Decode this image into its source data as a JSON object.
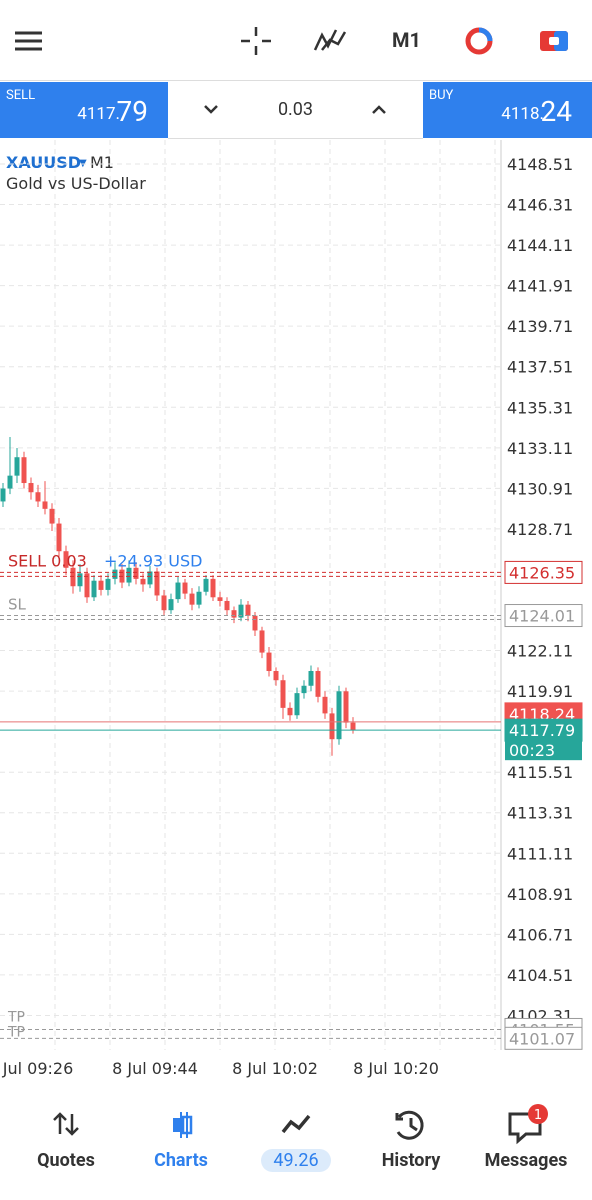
{
  "top_bar": {
    "timeframe": "M1"
  },
  "trade_panel": {
    "sell_label": "SELL",
    "sell_price_main": "4117.",
    "sell_price_big": "79",
    "volume": "0.03",
    "buy_label": "BUY",
    "buy_price_main": "4118.",
    "buy_price_big": "24"
  },
  "chart": {
    "symbol": "XAUUSD",
    "timeframe": "M1",
    "description": "Gold vs US-Dollar",
    "price_ticks": [
      4148.51,
      4146.31,
      4144.11,
      4141.91,
      4139.71,
      4137.51,
      4135.31,
      4133.11,
      4130.91,
      4128.71,
      4122.11,
      4119.91,
      4115.51,
      4113.31,
      4111.11,
      4108.91,
      4106.71,
      4104.51,
      4102.31
    ],
    "time_labels": [
      "Jul 09:26",
      "8 Jul 09:44",
      "8 Jul 10:02",
      "8 Jul 10:20"
    ],
    "candles": [
      [
        4130.2,
        4131.2,
        4129.9,
        4130.9
      ],
      [
        4130.9,
        4133.7,
        4130.6,
        4131.6
      ],
      [
        4131.6,
        4133.1,
        4131.2,
        4132.6
      ],
      [
        4132.6,
        4132.9,
        4130.9,
        4131.2
      ],
      [
        4131.2,
        4131.5,
        4130.3,
        4130.7
      ],
      [
        4130.7,
        4131.1,
        4129.9,
        4130.2
      ],
      [
        4130.2,
        4131.3,
        4129.5,
        4129.8
      ],
      [
        4129.8,
        4130.1,
        4128.6,
        4129.0
      ],
      [
        4129.0,
        4129.3,
        4127.2,
        4127.5
      ],
      [
        4127.5,
        4127.8,
        4126.2,
        4126.6
      ],
      [
        4126.6,
        4127.0,
        4125.2,
        4125.6
      ],
      [
        4125.6,
        4126.8,
        4125.3,
        4126.3
      ],
      [
        4126.3,
        4126.6,
        4124.7,
        4125.0
      ],
      [
        4125.0,
        4126.2,
        4124.8,
        4125.9
      ],
      [
        4125.9,
        4126.2,
        4125.1,
        4125.4
      ],
      [
        4125.4,
        4126.3,
        4125.1,
        4126.0
      ],
      [
        4126.0,
        4126.9,
        4125.7,
        4126.5
      ],
      [
        4126.5,
        4126.8,
        4125.5,
        4125.8
      ],
      [
        4125.8,
        4127.0,
        4125.6,
        4126.6
      ],
      [
        4126.6,
        4126.9,
        4125.7,
        4126.0
      ],
      [
        4126.0,
        4126.3,
        4125.3,
        4125.7
      ],
      [
        4125.7,
        4126.7,
        4125.5,
        4126.4
      ],
      [
        4126.4,
        4126.6,
        4124.8,
        4125.1
      ],
      [
        4125.1,
        4125.4,
        4124.0,
        4124.3
      ],
      [
        4124.3,
        4125.2,
        4124.1,
        4124.9
      ],
      [
        4124.9,
        4126.1,
        4124.7,
        4125.8
      ],
      [
        4125.8,
        4126.0,
        4124.9,
        4125.2
      ],
      [
        4125.2,
        4125.5,
        4124.3,
        4124.6
      ],
      [
        4124.6,
        4125.6,
        4124.4,
        4125.3
      ],
      [
        4125.3,
        4126.2,
        4125.1,
        4126.0
      ],
      [
        4126.0,
        4126.2,
        4124.8,
        4125.0
      ],
      [
        4125.0,
        4125.3,
        4124.5,
        4124.8
      ],
      [
        4124.8,
        4125.0,
        4124.0,
        4124.3
      ],
      [
        4124.3,
        4124.5,
        4123.6,
        4123.9
      ],
      [
        4123.9,
        4124.9,
        4123.7,
        4124.6
      ],
      [
        4124.6,
        4124.8,
        4123.7,
        4124.0
      ],
      [
        4124.0,
        4124.2,
        4122.9,
        4123.2
      ],
      [
        4123.2,
        4123.4,
        4121.7,
        4122.0
      ],
      [
        4122.0,
        4122.3,
        4120.7,
        4121.0
      ],
      [
        4121.0,
        4121.2,
        4120.2,
        4120.5
      ],
      [
        4120.5,
        4120.8,
        4118.4,
        4119.0
      ],
      [
        4119.0,
        4119.3,
        4118.3,
        4118.6
      ],
      [
        4118.6,
        4120.1,
        4118.4,
        4119.8
      ],
      [
        4119.8,
        4120.5,
        4119.5,
        4120.2
      ],
      [
        4120.2,
        4121.3,
        4119.9,
        4121.0
      ],
      [
        4121.0,
        4121.2,
        4119.3,
        4119.6
      ],
      [
        4119.6,
        4119.9,
        4118.4,
        4118.7
      ],
      [
        4118.7,
        4119.0,
        4116.4,
        4117.3
      ],
      [
        4117.3,
        4120.2,
        4117.0,
        4119.9
      ],
      [
        4119.9,
        4120.1,
        4117.9,
        4118.2
      ],
      [
        4118.2,
        4118.5,
        4117.6,
        4117.79
      ]
    ],
    "up_color": "#26a69a",
    "down_color": "#ef5350",
    "order": {
      "label": "SELL 0.03",
      "profit": "+24.93 USD",
      "price": 4126.35
    },
    "stop_loss": {
      "label": "SL",
      "price": 4124.01
    },
    "take_profits": [
      {
        "label": "TP",
        "price": 4101.55
      },
      {
        "label": "TP",
        "price": 4101.07
      }
    ],
    "ask": 4118.24,
    "bid": 4117.79,
    "countdown": "00:23"
  },
  "nav": {
    "items": [
      "Quotes",
      "Charts",
      "49.26",
      "History",
      "Messages"
    ],
    "badge": "1"
  }
}
